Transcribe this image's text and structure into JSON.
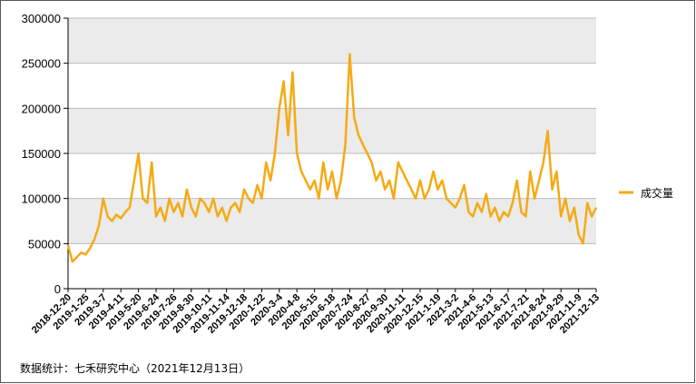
{
  "chart_data": {
    "type": "line",
    "categories": [
      "2018-12-20",
      null,
      null,
      null,
      "2019-1-25",
      null,
      null,
      null,
      "2019-3-7",
      null,
      null,
      null,
      "2019-4-11",
      null,
      null,
      null,
      "2019-5-20",
      null,
      null,
      null,
      "2019-6-24",
      null,
      null,
      null,
      "2019-7-26",
      null,
      null,
      null,
      "2019-8-30",
      null,
      null,
      null,
      "2019-10-11",
      null,
      null,
      null,
      "2019-11-14",
      null,
      null,
      null,
      "2019-12-18",
      null,
      null,
      null,
      "2020-1-22",
      null,
      null,
      null,
      "2020-3-4",
      null,
      null,
      null,
      "2020-4-8",
      null,
      null,
      null,
      "2020-5-15",
      null,
      null,
      null,
      "2020-6-18",
      null,
      null,
      null,
      "2020-7-24",
      null,
      null,
      null,
      "2020-8-27",
      null,
      null,
      null,
      "2020-9-30",
      null,
      null,
      null,
      "2020-11-11",
      null,
      null,
      null,
      "2020-12-15",
      null,
      null,
      null,
      "2021-1-19",
      null,
      null,
      null,
      "2021-3-2",
      null,
      null,
      null,
      "2021-4-6",
      null,
      null,
      null,
      "2021-5-13",
      null,
      null,
      null,
      "2021-6-17",
      null,
      null,
      null,
      "2021-7-21",
      null,
      null,
      null,
      "2021-8-24",
      null,
      null,
      null,
      "2021-9-29",
      null,
      null,
      null,
      "2021-11-9",
      null,
      null,
      null,
      "2021-12-13"
    ],
    "series": [
      {
        "name": "成交量",
        "color": "#f5aa14",
        "values": [
          48000,
          30000,
          35000,
          40000,
          38000,
          45000,
          55000,
          70000,
          100000,
          80000,
          75000,
          82000,
          78000,
          85000,
          90000,
          120000,
          150000,
          100000,
          95000,
          140000,
          80000,
          90000,
          75000,
          100000,
          85000,
          95000,
          80000,
          110000,
          90000,
          80000,
          100000,
          95000,
          85000,
          100000,
          80000,
          90000,
          75000,
          90000,
          95000,
          85000,
          110000,
          100000,
          95000,
          115000,
          100000,
          140000,
          120000,
          150000,
          200000,
          230000,
          170000,
          240000,
          150000,
          130000,
          120000,
          110000,
          120000,
          100000,
          140000,
          110000,
          130000,
          100000,
          120000,
          160000,
          260000,
          190000,
          170000,
          160000,
          150000,
          140000,
          120000,
          130000,
          110000,
          120000,
          100000,
          140000,
          130000,
          120000,
          110000,
          100000,
          120000,
          100000,
          110000,
          130000,
          110000,
          120000,
          100000,
          95000,
          90000,
          100000,
          115000,
          85000,
          80000,
          95000,
          85000,
          105000,
          80000,
          90000,
          75000,
          85000,
          80000,
          95000,
          120000,
          85000,
          80000,
          130000,
          100000,
          120000,
          140000,
          175000,
          110000,
          130000,
          80000,
          100000,
          75000,
          90000,
          60000,
          50000,
          95000,
          80000,
          90000
        ]
      }
    ],
    "ylim": [
      0,
      300000
    ],
    "yticks": [
      0,
      50000,
      100000,
      150000,
      200000,
      250000,
      300000
    ],
    "grid": true,
    "legend": "right",
    "source": "数据统计：七禾研究中心（2021年12月13日）"
  }
}
